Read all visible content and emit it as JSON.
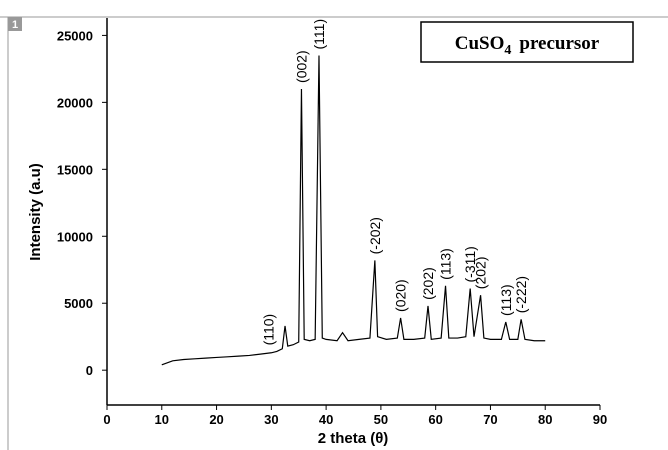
{
  "panel_label": "1",
  "chart_data": {
    "type": "line",
    "title_main": "CuSO",
    "title_subscript": "4",
    "title_rest": "precursor",
    "xlabel": "2 theta (θ)",
    "ylabel": "Intensity (a.u)",
    "x": [
      10,
      12,
      14,
      16,
      18,
      20,
      22,
      24,
      26,
      28,
      30,
      31,
      32,
      32.5,
      33,
      34,
      35,
      35.5,
      36,
      37,
      38,
      38.7,
      39.3,
      40,
      42,
      43,
      44,
      46,
      48,
      48.9,
      49.4,
      51,
      53,
      53.6,
      54.2,
      56,
      58,
      58.6,
      59.2,
      61,
      61.8,
      62.4,
      64,
      65.5,
      66.3,
      67,
      68.2,
      68.8,
      70,
      72,
      72.8,
      73.5,
      75,
      75.6,
      76.3,
      78,
      80
    ],
    "values": [
      400,
      700,
      800,
      850,
      900,
      950,
      1000,
      1050,
      1100,
      1200,
      1300,
      1400,
      1600,
      3300,
      1800,
      1900,
      2100,
      21000,
      2300,
      2200,
      2300,
      23500,
      2400,
      2300,
      2200,
      2800,
      2200,
      2300,
      2400,
      8200,
      2500,
      2300,
      2400,
      3900,
      2300,
      2300,
      2400,
      4800,
      2300,
      2400,
      6300,
      2400,
      2400,
      2500,
      6100,
      2500,
      5600,
      2400,
      2300,
      2300,
      3600,
      2300,
      2300,
      3800,
      2300,
      2200,
      2200
    ],
    "color": "#000000",
    "xlim": [
      0,
      90
    ],
    "xticks": [
      0,
      10,
      20,
      30,
      40,
      50,
      60,
      70,
      80,
      90
    ],
    "ylim": [
      -2600,
      26300
    ],
    "yticks": [
      0,
      5000,
      10000,
      15000,
      20000,
      25000
    ],
    "annotations": [
      {
        "text": "(110)",
        "x": 29.5
      },
      {
        "text": "(002)",
        "x": 35.5
      },
      {
        "text": "(111)",
        "x": 38.7
      },
      {
        "text": "(-202)",
        "x": 48.9
      },
      {
        "text": "(020)",
        "x": 53.6
      },
      {
        "text": "(202)",
        "x": 58.6
      },
      {
        "text": "(113)",
        "x": 61.8
      },
      {
        "text": "(-311)",
        "x": 66.3
      },
      {
        "text": "(202)",
        "x": 68.2
      },
      {
        "text": "(113)",
        "x": 72.8
      },
      {
        "text": "(-222)",
        "x": 75.6
      }
    ]
  }
}
